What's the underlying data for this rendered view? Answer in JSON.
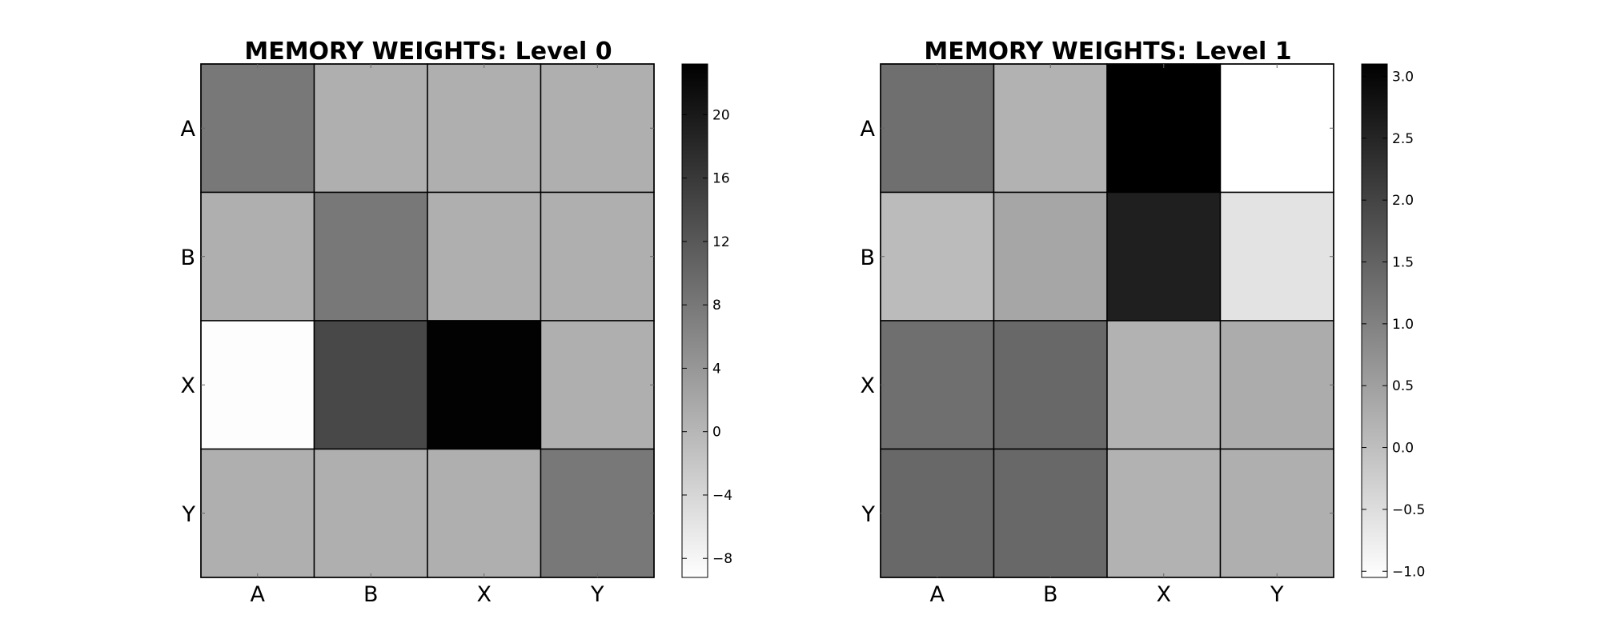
{
  "chart_data": [
    {
      "type": "heatmap",
      "title": "MEMORY WEIGHTS: Level 0",
      "xlabel": "",
      "ylabel": "",
      "x_categories": [
        "A",
        "B",
        "X",
        "Y"
      ],
      "y_categories": [
        "A",
        "B",
        "X",
        "Y"
      ],
      "values": [
        [
          8,
          1,
          1,
          1
        ],
        [
          1,
          8,
          1,
          1
        ],
        [
          -9,
          14,
          23,
          1
        ],
        [
          1,
          1,
          1,
          8
        ]
      ],
      "colormap": "gray_r",
      "color_range": [
        -9.2,
        23.2
      ],
      "colorbar_ticks": [
        20,
        16,
        12,
        8,
        4,
        0,
        -4,
        -8
      ],
      "colorbar_tick_labels": [
        "20",
        "16",
        "12",
        "8",
        "4",
        "0",
        "−4",
        "−8"
      ]
    },
    {
      "type": "heatmap",
      "title": "MEMORY WEIGHTS: Level 1",
      "xlabel": "",
      "ylabel": "",
      "x_categories": [
        "A",
        "B",
        "X",
        "Y"
      ],
      "y_categories": [
        "A",
        "B",
        "X",
        "Y"
      ],
      "values": [
        [
          1.3,
          0.2,
          3.1,
          -1.05
        ],
        [
          0.05,
          0.4,
          2.6,
          -0.6
        ],
        [
          1.3,
          1.4,
          0.2,
          0.3
        ],
        [
          1.4,
          1.4,
          0.2,
          0.25
        ]
      ],
      "colormap": "gray_r",
      "color_range": [
        -1.05,
        3.1
      ],
      "colorbar_ticks": [
        3.0,
        2.5,
        2.0,
        1.5,
        1.0,
        0.5,
        0.0,
        -0.5,
        -1.0
      ],
      "colorbar_tick_labels": [
        "3.0",
        "2.5",
        "2.0",
        "1.5",
        "1.0",
        "0.5",
        "0.0",
        "−0.5",
        "−1.0"
      ]
    }
  ]
}
